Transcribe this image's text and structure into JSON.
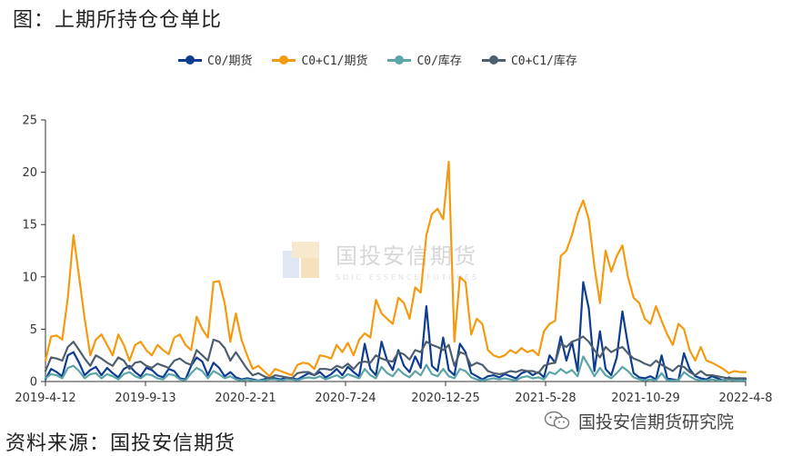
{
  "page": {
    "title": "图：上期所持仓仓单比",
    "source": "资料来源：国投安信期货",
    "wechat_label": "国投安信期货研究院",
    "watermark_main": "国投安信期货",
    "watermark_sub": "SDIC ESSENCE FUTURES"
  },
  "chart_data": {
    "type": "line",
    "title": "",
    "xlabel": "",
    "ylabel": "",
    "ylim": [
      0,
      25
    ],
    "yticks": [
      0,
      5,
      10,
      15,
      20,
      25
    ],
    "x_tick_labels": [
      "2019-4-12",
      "2019-9-13",
      "2020-2-21",
      "2020-7-24",
      "2020-12-25",
      "2021-5-28",
      "2021-10-29",
      "2022-4-8"
    ],
    "x_start": "2019-4-12",
    "x_end": "2022-4-8",
    "legend_position": "top",
    "grid": false,
    "series": [
      {
        "name": "C0/期货",
        "color": "#0d3c91",
        "values": [
          0.2,
          1.2,
          0.9,
          0.5,
          2.5,
          2.8,
          1.8,
          0.6,
          1.1,
          1.4,
          0.6,
          1.3,
          0.8,
          0.4,
          1.2,
          1.5,
          0.9,
          0.5,
          1.3,
          1.1,
          0.6,
          0.4,
          1.2,
          1.0,
          0.3,
          0.2,
          1.5,
          2.3,
          1.9,
          0.6,
          1.8,
          1.3,
          0.5,
          0.9,
          0.4,
          0.2,
          0.3,
          0.2,
          0.1,
          0.2,
          0.4,
          0.3,
          0.2,
          0.4,
          0.3,
          0.2,
          0.5,
          0.8,
          0.6,
          0.9,
          0.4,
          0.7,
          1.2,
          0.6,
          1.4,
          0.9,
          0.5,
          3.6,
          1.2,
          0.6,
          3.8,
          2.0,
          1.1,
          3.0,
          1.5,
          0.9,
          2.4,
          1.3,
          7.2,
          1.5,
          1.0,
          4.2,
          1.1,
          0.6,
          3.6,
          2.8,
          0.8,
          0.5,
          0.2,
          0.5,
          0.6,
          0.4,
          0.7,
          0.5,
          0.3,
          0.8,
          1.0,
          0.6,
          0.9,
          0.4,
          2.5,
          1.8,
          4.3,
          2.0,
          3.8,
          1.0,
          9.5,
          7.0,
          1.0,
          4.8,
          1.2,
          0.6,
          2.3,
          6.7,
          3.5,
          0.8,
          0.4,
          0.3,
          0.5,
          0.2,
          2.5,
          0.3,
          0.2,
          0.1,
          2.7,
          1.2,
          0.5,
          0.3,
          0.2,
          0.5,
          0.3,
          0.1,
          0.4,
          0.2,
          0.3,
          0.2
        ]
      },
      {
        "name": "C0+C1/期货",
        "color": "#f59a10",
        "values": [
          2.0,
          4.3,
          4.4,
          4.0,
          8.0,
          14.0,
          10.0,
          6.0,
          2.5,
          4.0,
          4.5,
          3.5,
          2.5,
          4.5,
          3.5,
          2.0,
          3.5,
          3.8,
          3.0,
          2.5,
          3.5,
          3.0,
          2.6,
          4.2,
          4.5,
          3.5,
          3.0,
          6.2,
          5.0,
          4.2,
          9.5,
          9.6,
          7.5,
          3.8,
          6.5,
          4.0,
          2.5,
          1.2,
          1.5,
          1.0,
          0.5,
          1.2,
          1.0,
          0.8,
          0.6,
          1.6,
          1.8,
          1.7,
          1.2,
          2.5,
          2.4,
          2.2,
          3.5,
          2.8,
          3.7,
          2.5,
          4.0,
          4.6,
          4.2,
          7.8,
          6.5,
          6.0,
          5.5,
          8.0,
          7.5,
          6.0,
          9.0,
          8.5,
          14.0,
          16.0,
          16.5,
          15.5,
          21.0,
          3.8,
          10.0,
          9.5,
          4.5,
          6.0,
          5.5,
          3.0,
          2.5,
          2.3,
          2.5,
          3.0,
          2.7,
          3.2,
          2.8,
          3.0,
          2.5,
          4.8,
          5.5,
          5.8,
          12.0,
          12.5,
          14.0,
          16.0,
          17.3,
          15.5,
          11.0,
          7.5,
          12.5,
          10.5,
          12.0,
          13.0,
          10.0,
          8.0,
          7.5,
          6.0,
          5.5,
          7.2,
          5.8,
          4.5,
          3.5,
          5.5,
          5.0,
          3.0,
          2.0,
          3.3,
          2.0,
          1.8,
          1.5,
          1.2,
          0.8,
          1.0,
          0.9,
          0.9
        ]
      },
      {
        "name": "C0/库存",
        "color": "#5ba4a7",
        "values": [
          0.3,
          0.7,
          0.6,
          0.3,
          1.3,
          1.5,
          1.0,
          0.3,
          0.7,
          0.8,
          0.3,
          0.7,
          0.5,
          0.2,
          0.7,
          0.9,
          0.5,
          0.3,
          0.7,
          0.6,
          0.3,
          0.2,
          0.7,
          0.6,
          0.2,
          0.1,
          0.8,
          1.3,
          1.0,
          0.3,
          1.0,
          0.7,
          0.3,
          0.5,
          0.2,
          0.1,
          0.2,
          0.1,
          0.1,
          0.1,
          0.2,
          0.2,
          0.1,
          0.2,
          0.2,
          0.1,
          0.3,
          0.4,
          0.3,
          0.5,
          0.2,
          0.4,
          0.6,
          0.3,
          0.7,
          0.5,
          0.3,
          1.2,
          0.6,
          0.3,
          1.4,
          0.8,
          0.5,
          1.2,
          0.7,
          0.4,
          1.0,
          0.6,
          1.6,
          0.7,
          0.5,
          1.2,
          0.5,
          0.3,
          1.2,
          1.0,
          0.4,
          0.2,
          0.1,
          0.2,
          0.3,
          0.2,
          0.3,
          0.2,
          0.1,
          0.4,
          0.5,
          0.3,
          0.4,
          0.2,
          0.9,
          0.7,
          1.2,
          0.8,
          1.1,
          0.5,
          2.4,
          1.5,
          0.5,
          1.3,
          0.6,
          0.3,
          0.8,
          1.4,
          1.0,
          0.4,
          0.2,
          0.1,
          0.2,
          0.1,
          0.8,
          0.1,
          0.1,
          0.1,
          0.9,
          0.5,
          0.2,
          0.1,
          0.1,
          0.2,
          0.1,
          0.1,
          0.2,
          0.1,
          0.1,
          0.1
        ]
      },
      {
        "name": "C0+C1/库存",
        "color": "#4d5f6e",
        "values": [
          1.0,
          2.3,
          2.2,
          2.0,
          3.3,
          3.8,
          3.0,
          2.2,
          1.5,
          2.5,
          2.2,
          1.8,
          1.5,
          2.3,
          2.0,
          1.2,
          1.8,
          1.9,
          1.5,
          1.3,
          1.7,
          1.5,
          1.3,
          2.0,
          2.2,
          1.8,
          1.6,
          3.0,
          2.5,
          2.0,
          4.0,
          3.8,
          3.2,
          2.0,
          2.8,
          2.0,
          1.2,
          0.6,
          0.8,
          0.5,
          0.3,
          0.6,
          0.5,
          0.4,
          0.3,
          0.8,
          0.9,
          0.9,
          0.6,
          1.2,
          1.2,
          1.1,
          1.5,
          1.3,
          1.7,
          1.2,
          1.8,
          1.9,
          1.8,
          2.5,
          2.2,
          2.0,
          1.9,
          2.8,
          2.6,
          2.1,
          3.0,
          2.8,
          3.8,
          3.5,
          3.3,
          3.0,
          3.5,
          1.5,
          2.8,
          2.6,
          1.5,
          1.8,
          1.6,
          1.0,
          0.8,
          0.7,
          0.8,
          1.0,
          0.9,
          1.1,
          1.0,
          1.0,
          0.8,
          1.5,
          1.7,
          1.8,
          3.6,
          3.3,
          3.8,
          4.0,
          4.3,
          3.8,
          3.0,
          2.3,
          3.3,
          2.8,
          3.1,
          3.3,
          2.7,
          2.2,
          2.0,
          1.7,
          1.5,
          2.0,
          1.6,
          1.3,
          1.0,
          1.5,
          1.4,
          0.9,
          0.6,
          1.0,
          0.6,
          0.6,
          0.5,
          0.4,
          0.3,
          0.3,
          0.3,
          0.3
        ]
      }
    ]
  }
}
